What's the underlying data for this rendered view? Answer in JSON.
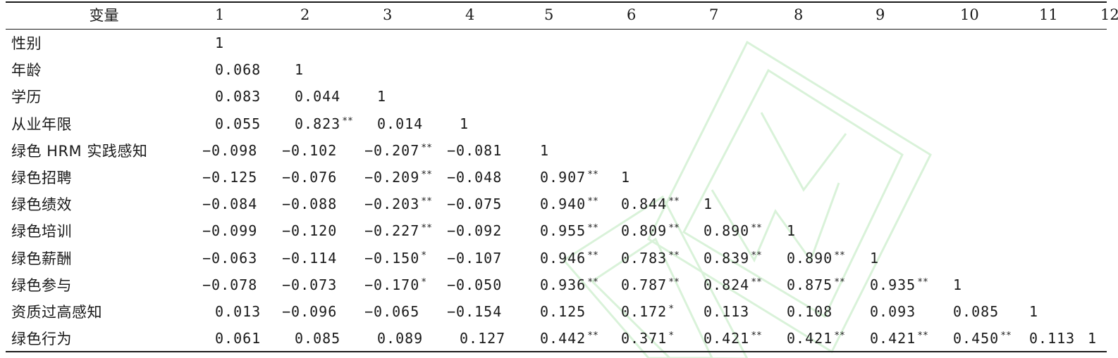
{
  "table": {
    "header": {
      "variable_label": "变量",
      "columns": [
        "1",
        "2",
        "3",
        "4",
        "5",
        "6",
        "7",
        "8",
        "9",
        "10",
        "11",
        "12"
      ]
    },
    "rows": [
      {
        "name": "性别",
        "cells": [
          {
            "v": "1",
            "s": ""
          }
        ]
      },
      {
        "name": "年龄",
        "cells": [
          {
            "v": "0.068",
            "s": ""
          },
          {
            "v": "1",
            "s": ""
          }
        ]
      },
      {
        "name": "学历",
        "cells": [
          {
            "v": "0.083",
            "s": ""
          },
          {
            "v": "0.044",
            "s": ""
          },
          {
            "v": "1",
            "s": ""
          }
        ]
      },
      {
        "name": "从业年限",
        "cells": [
          {
            "v": "0.055",
            "s": ""
          },
          {
            "v": "0.823",
            "s": "**"
          },
          {
            "v": "0.014",
            "s": ""
          },
          {
            "v": "1",
            "s": ""
          }
        ]
      },
      {
        "name": "绿色 HRM 实践感知",
        "cells": [
          {
            "v": "−0.098",
            "s": ""
          },
          {
            "v": "−0.102",
            "s": ""
          },
          {
            "v": "−0.207",
            "s": "**"
          },
          {
            "v": "−0.081",
            "s": ""
          },
          {
            "v": "1",
            "s": ""
          }
        ]
      },
      {
        "name": "绿色招聘",
        "cells": [
          {
            "v": "−0.125",
            "s": ""
          },
          {
            "v": "−0.076",
            "s": ""
          },
          {
            "v": "−0.209",
            "s": "**"
          },
          {
            "v": "−0.048",
            "s": ""
          },
          {
            "v": "0.907",
            "s": "**"
          },
          {
            "v": "1",
            "s": ""
          }
        ]
      },
      {
        "name": "绿色绩效",
        "cells": [
          {
            "v": "−0.084",
            "s": ""
          },
          {
            "v": "−0.088",
            "s": ""
          },
          {
            "v": "−0.203",
            "s": "**"
          },
          {
            "v": "−0.075",
            "s": ""
          },
          {
            "v": "0.940",
            "s": "**"
          },
          {
            "v": "0.844",
            "s": "**"
          },
          {
            "v": "1",
            "s": ""
          }
        ]
      },
      {
        "name": "绿色培训",
        "cells": [
          {
            "v": "−0.099",
            "s": ""
          },
          {
            "v": "−0.120",
            "s": ""
          },
          {
            "v": "−0.227",
            "s": "**"
          },
          {
            "v": "−0.092",
            "s": ""
          },
          {
            "v": "0.955",
            "s": "**"
          },
          {
            "v": "0.809",
            "s": "**"
          },
          {
            "v": "0.890",
            "s": "**"
          },
          {
            "v": "1",
            "s": ""
          }
        ]
      },
      {
        "name": "绿色薪酬",
        "cells": [
          {
            "v": "−0.063",
            "s": ""
          },
          {
            "v": "−0.114",
            "s": ""
          },
          {
            "v": "−0.150",
            "s": "*"
          },
          {
            "v": "−0.107",
            "s": ""
          },
          {
            "v": "0.946",
            "s": "**"
          },
          {
            "v": "0.783",
            "s": "**"
          },
          {
            "v": "0.839",
            "s": "**"
          },
          {
            "v": "0.890",
            "s": "**"
          },
          {
            "v": "1",
            "s": ""
          }
        ]
      },
      {
        "name": "绿色参与",
        "cells": [
          {
            "v": "−0.078",
            "s": ""
          },
          {
            "v": "−0.073",
            "s": ""
          },
          {
            "v": "−0.170",
            "s": "*"
          },
          {
            "v": "−0.050",
            "s": ""
          },
          {
            "v": "0.936",
            "s": "**"
          },
          {
            "v": "0.787",
            "s": "**"
          },
          {
            "v": "0.824",
            "s": "**"
          },
          {
            "v": "0.875",
            "s": "**"
          },
          {
            "v": "0.935",
            "s": "**"
          },
          {
            "v": "1",
            "s": ""
          }
        ]
      },
      {
        "name": "资质过高感知",
        "cells": [
          {
            "v": "0.013",
            "s": ""
          },
          {
            "v": "−0.096",
            "s": ""
          },
          {
            "v": "−0.065",
            "s": ""
          },
          {
            "v": "−0.154",
            "s": ""
          },
          {
            "v": "0.125",
            "s": ""
          },
          {
            "v": "0.172",
            "s": "*"
          },
          {
            "v": "0.113",
            "s": ""
          },
          {
            "v": "0.108",
            "s": ""
          },
          {
            "v": "0.093",
            "s": ""
          },
          {
            "v": "0.085",
            "s": ""
          },
          {
            "v": "1",
            "s": ""
          }
        ]
      },
      {
        "name": "绿色行为",
        "cells": [
          {
            "v": "0.061",
            "s": ""
          },
          {
            "v": "0.085",
            "s": ""
          },
          {
            "v": "0.089",
            "s": ""
          },
          {
            "v": "0.127",
            "s": ""
          },
          {
            "v": "0.442",
            "s": "**"
          },
          {
            "v": "0.371",
            "s": "*"
          },
          {
            "v": "0.421",
            "s": "**"
          },
          {
            "v": "0.421",
            "s": "**"
          },
          {
            "v": "0.421",
            "s": "**"
          },
          {
            "v": "0.450",
            "s": "**"
          },
          {
            "v": "0.113",
            "s": ""
          },
          {
            "v": "1",
            "s": ""
          }
        ]
      }
    ]
  },
  "colors": {
    "text": "#1a1a1a",
    "rule": "#1a1a1a",
    "watermark": "#d9f2d9"
  }
}
